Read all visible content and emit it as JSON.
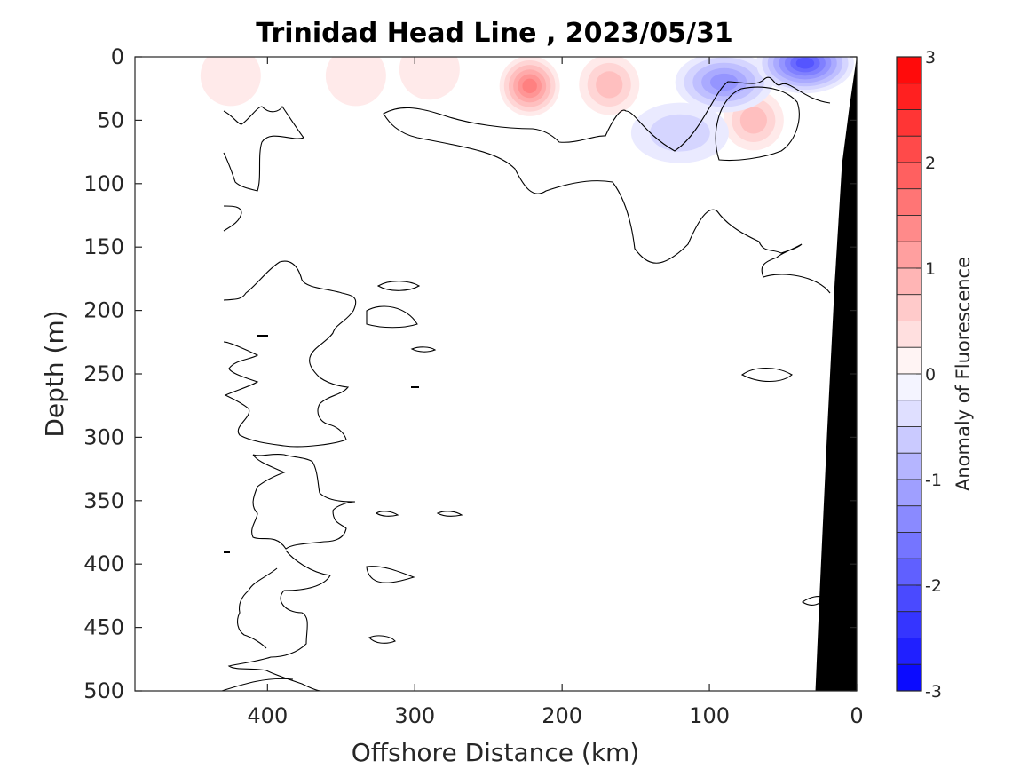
{
  "chart_data": {
    "type": "contour",
    "title": "Trinidad Head Line , 2023/05/31",
    "xlabel": "Offshore Distance (km)",
    "ylabel": "Depth (m)",
    "xlim": [
      490,
      0
    ],
    "ylim": [
      0,
      500
    ],
    "x_direction": "reversed",
    "y_direction": "reversed (depth increases downward)",
    "x_ticks": [
      400,
      300,
      200,
      100,
      0
    ],
    "y_ticks": [
      0,
      50,
      100,
      150,
      200,
      250,
      300,
      350,
      400,
      450,
      500
    ],
    "colorbar": {
      "label": "Anomaly of Fluorescence",
      "limits": [
        -3,
        3
      ],
      "ticks": [
        -3,
        -2,
        -1,
        0,
        1,
        2,
        3
      ],
      "step": 0.25,
      "colormap": "blue-white-red",
      "negative_color": "#0000ff",
      "zero_color": "#ffffff",
      "positive_color": "#ff0000"
    },
    "contour_line_level": 0,
    "bathymetry_fill_color": "#000000",
    "features": [
      {
        "kind": "positive_anomaly",
        "center_km": 222,
        "center_depth_m": 23,
        "peak": 1.5
      },
      {
        "kind": "positive_anomaly",
        "center_km": 168,
        "center_depth_m": 22,
        "peak": 0.75
      },
      {
        "kind": "positive_anomaly",
        "center_km": 70,
        "center_depth_m": 50,
        "peak": 0.75
      },
      {
        "kind": "positive_anomaly",
        "center_km": 340,
        "center_depth_m": 15,
        "peak": 0.25
      },
      {
        "kind": "positive_anomaly",
        "center_km": 290,
        "center_depth_m": 10,
        "peak": 0.25
      },
      {
        "kind": "positive_anomaly",
        "center_km": 425,
        "center_depth_m": 15,
        "peak": 0.25
      },
      {
        "kind": "negative_anomaly",
        "center_km": 90,
        "center_depth_m": 20,
        "peak": -1.25
      },
      {
        "kind": "negative_anomaly",
        "center_km": 35,
        "center_depth_m": 5,
        "peak": -2.0
      },
      {
        "kind": "negative_anomaly",
        "center_km": 120,
        "center_depth_m": 60,
        "peak": -0.5
      }
    ],
    "bathymetry_profile": [
      {
        "x_km": 0,
        "depth_m": 0
      },
      {
        "x_km": 5,
        "depth_m": 40
      },
      {
        "x_km": 10,
        "depth_m": 85
      },
      {
        "x_km": 15,
        "depth_m": 180
      },
      {
        "x_km": 20,
        "depth_m": 295
      },
      {
        "x_km": 25,
        "depth_m": 420
      },
      {
        "x_km": 28,
        "depth_m": 500
      }
    ]
  }
}
